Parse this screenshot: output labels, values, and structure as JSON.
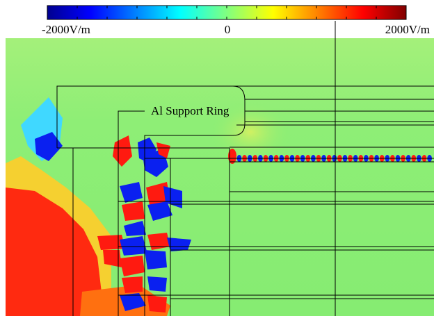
{
  "colorbar": {
    "labels": [
      "-2000V/m",
      "0",
      "2000V/m"
    ]
  },
  "annotation": "Al Support Ring"
}
